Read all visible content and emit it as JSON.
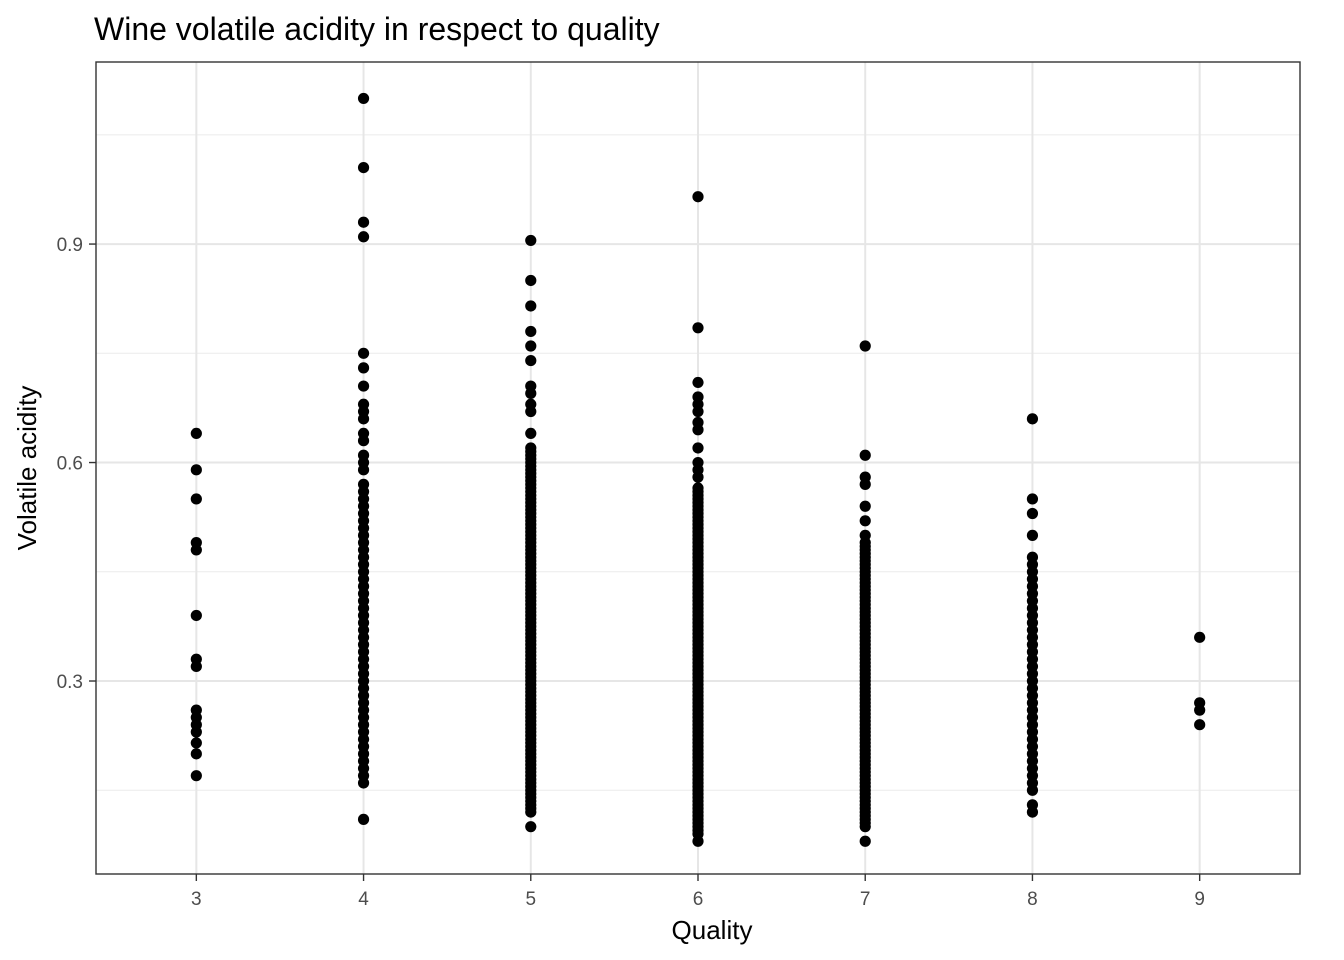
{
  "chart_data": {
    "type": "scatter",
    "title": "Wine volatile acidity in respect to quality",
    "xlabel": "Quality",
    "ylabel": "Volatile acidity",
    "xlim": [
      2.4,
      9.6
    ],
    "ylim": [
      0.035,
      1.15
    ],
    "x_ticks": [
      3,
      4,
      5,
      6,
      7,
      8,
      9
    ],
    "y_ticks": [
      0.3,
      0.6,
      0.9
    ],
    "y_minor_ticks": [
      0.15,
      0.45,
      0.75,
      1.05
    ],
    "grid": true,
    "legend": "none",
    "point_color": "#000000",
    "points": {
      "3": {
        "top": [
          0.64,
          0.59,
          0.55,
          0.49,
          0.48,
          0.39,
          0.33,
          0.32,
          0.26,
          0.25,
          0.24,
          0.23,
          0.215,
          0.2,
          0.17
        ],
        "band": null
      },
      "4": {
        "top": [
          1.1,
          1.005,
          0.93,
          0.91,
          0.75,
          0.73,
          0.705,
          0.68,
          0.67,
          0.66,
          0.64,
          0.63,
          0.61,
          0.6,
          0.59,
          0.57
        ],
        "band": [
          0.16,
          0.56,
          0.01
        ],
        "bottom": [
          0.11
        ]
      },
      "5": {
        "top": [
          0.905,
          0.85,
          0.815,
          0.78,
          0.76,
          0.74,
          0.705,
          0.695,
          0.68,
          0.67,
          0.64
        ],
        "band": [
          0.12,
          0.62,
          0.005
        ],
        "bottom": [
          0.1
        ]
      },
      "6": {
        "top": [
          0.965,
          0.785,
          0.71,
          0.69,
          0.68,
          0.67,
          0.655,
          0.645,
          0.62,
          0.6,
          0.59,
          0.58
        ],
        "band": [
          0.09,
          0.565,
          0.005
        ],
        "bottom": [
          0.08
        ]
      },
      "7": {
        "top": [
          0.76,
          0.61,
          0.58,
          0.57,
          0.54,
          0.52,
          0.5
        ],
        "band": [
          0.1,
          0.49,
          0.005
        ],
        "bottom": [
          0.08
        ]
      },
      "8": {
        "top": [
          0.66,
          0.55,
          0.53,
          0.5
        ],
        "band": [
          0.15,
          0.47,
          0.01
        ],
        "bottom": [
          0.13,
          0.12
        ]
      },
      "9": {
        "top": [
          0.36,
          0.27,
          0.26,
          0.24
        ],
        "band": null
      }
    }
  }
}
